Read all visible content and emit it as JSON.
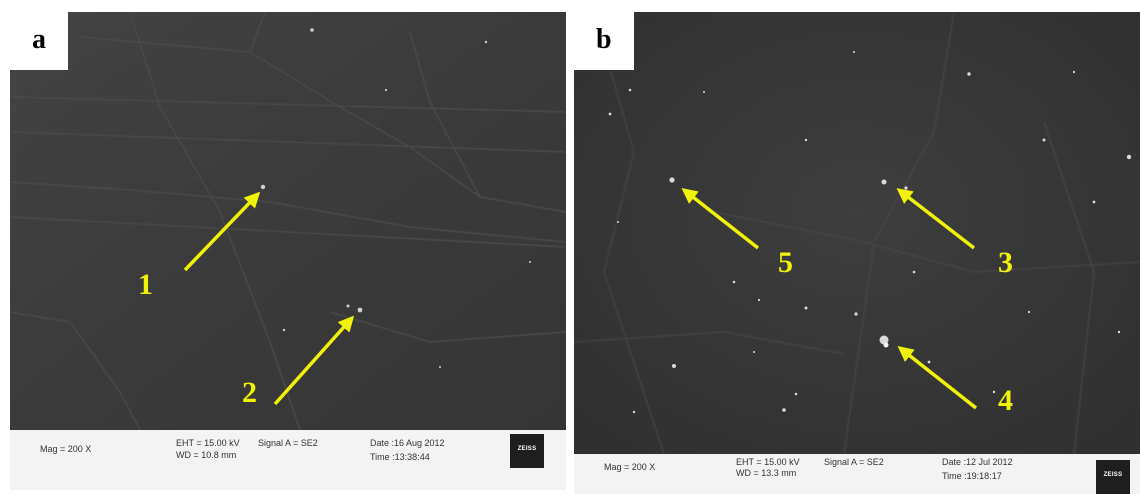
{
  "panels": [
    {
      "letter": "a",
      "numbers": [
        "1",
        "2"
      ],
      "databar": {
        "mag": "Mag = 200 X",
        "eht": "EHT = 15.00 kV",
        "wd": "WD = 10.8 mm",
        "signal": "Signal A = SE2",
        "date": "Date :16 Aug 2012",
        "time": "Time :13:38:44",
        "logo": "ZEISS"
      }
    },
    {
      "letter": "b",
      "numbers": [
        "5",
        "3",
        "4"
      ],
      "databar": {
        "mag": "Mag = 200 X",
        "eht": "EHT = 15.00 kV",
        "wd": "WD = 13.3 mm",
        "signal": "Signal A = SE2",
        "date": "Date :12 Jul 2012",
        "time": "Time :19:18:17",
        "logo": "ZEISS"
      }
    }
  ],
  "colors": {
    "arrow": "#f1f20a",
    "sem_background": "#3c3c3c",
    "databar": "#f3f3f3"
  }
}
